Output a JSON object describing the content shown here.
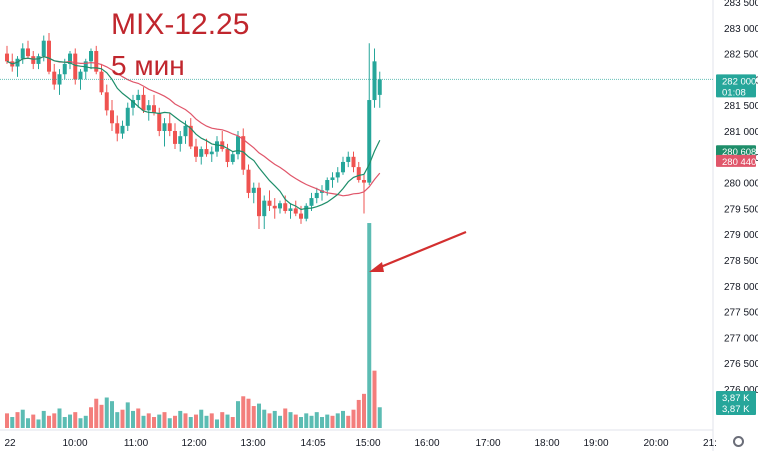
{
  "title": "MIX-12.25",
  "subtitle": "5 мин",
  "colors": {
    "up": "#26a69a",
    "down": "#ef5350",
    "ma_fast": "#1e8e6a",
    "ma_slow": "#e0566a",
    "annotation": "#d32f2f",
    "last_line": "#26a69a"
  },
  "icons": {
    "settings": "gear-icon",
    "annotation": "arrow-icon"
  },
  "chart_data": {
    "type": "candlestick",
    "price_axis": {
      "ticks": [
        "283 500",
        "283 000",
        "282 500",
        "282 000",
        "281 500",
        "281 000",
        "280 500",
        "280 000",
        "279 500",
        "279 000",
        "278 500",
        "278 000",
        "277 500",
        "277 000",
        "276 500",
        "276 000"
      ],
      "tick_values": [
        283500,
        283000,
        282500,
        282000,
        281500,
        281000,
        280500,
        280000,
        279500,
        279000,
        278500,
        278000,
        277500,
        277000,
        276500,
        276000
      ]
    },
    "time_axis": {
      "labels": [
        "22",
        "10:00",
        "11:00",
        "12:00",
        "13:00",
        "14:05",
        "15:00",
        "16:00",
        "17:00",
        "18:00",
        "19:00",
        "20:00",
        "21:"
      ]
    },
    "badges": {
      "last_price": "282 000",
      "countdown": "01:08",
      "ma_fast_value": "280 608",
      "ma_slow_value": "280 440",
      "volume_1": "3,87 K",
      "volume_2": "3,87 K"
    },
    "candles": [
      [
        282500,
        282650,
        282300,
        282350
      ],
      [
        282350,
        282500,
        282150,
        282250
      ],
      [
        282250,
        282450,
        282050,
        282400
      ],
      [
        282400,
        282700,
        282300,
        282600
      ],
      [
        282600,
        282750,
        282400,
        282450
      ],
      [
        282450,
        282550,
        282200,
        282300
      ],
      [
        282300,
        282500,
        282200,
        282450
      ],
      [
        282450,
        282850,
        282350,
        282750
      ],
      [
        282750,
        282900,
        282100,
        282150
      ],
      [
        282150,
        282300,
        281800,
        281900
      ],
      [
        281900,
        282200,
        281700,
        282100
      ],
      [
        282100,
        282400,
        282000,
        282300
      ],
      [
        282300,
        282550,
        282200,
        282500
      ],
      [
        282500,
        282600,
        281900,
        282000
      ],
      [
        282000,
        282200,
        281800,
        282150
      ],
      [
        282150,
        282400,
        282000,
        282350
      ],
      [
        282350,
        282600,
        282200,
        282550
      ],
      [
        282550,
        282650,
        282100,
        282150
      ],
      [
        282150,
        282300,
        281700,
        281750
      ],
      [
        281750,
        281900,
        281300,
        281400
      ],
      [
        281400,
        281600,
        281000,
        281150
      ],
      [
        281150,
        281300,
        280800,
        280950
      ],
      [
        280950,
        281200,
        280850,
        281100
      ],
      [
        281100,
        281550,
        281000,
        281450
      ],
      [
        281450,
        281700,
        281300,
        281600
      ],
      [
        281600,
        281800,
        281450,
        281700
      ],
      [
        281700,
        281850,
        281350,
        281400
      ],
      [
        281400,
        281600,
        281200,
        281500
      ],
      [
        281500,
        281700,
        281300,
        281350
      ],
      [
        281350,
        281450,
        280900,
        281000
      ],
      [
        281000,
        281250,
        280700,
        281150
      ],
      [
        281150,
        281350,
        280900,
        281000
      ],
      [
        281000,
        281150,
        280650,
        280750
      ],
      [
        280750,
        281000,
        280600,
        280900
      ],
      [
        280900,
        281200,
        280750,
        281100
      ],
      [
        281100,
        281250,
        280650,
        280700
      ],
      [
        280700,
        280850,
        280400,
        280500
      ],
      [
        280500,
        280700,
        280350,
        280650
      ],
      [
        280650,
        280850,
        280500,
        280550
      ],
      [
        280550,
        280700,
        280400,
        280600
      ],
      [
        280600,
        280900,
        280500,
        280800
      ],
      [
        280800,
        281000,
        280600,
        280650
      ],
      [
        280650,
        280750,
        280300,
        280400
      ],
      [
        280400,
        280600,
        280350,
        280550
      ],
      [
        280550,
        281000,
        280450,
        280900
      ],
      [
        280900,
        281050,
        280150,
        280250
      ],
      [
        280250,
        280350,
        279700,
        279800
      ],
      [
        279800,
        280000,
        279600,
        279900
      ],
      [
        279900,
        280000,
        279100,
        279350
      ],
      [
        279350,
        279750,
        279100,
        279650
      ],
      [
        279650,
        279850,
        279450,
        279550
      ],
      [
        279550,
        279700,
        279300,
        279500
      ],
      [
        279500,
        279650,
        279400,
        279600
      ],
      [
        279600,
        279750,
        279400,
        279450
      ],
      [
        279450,
        279600,
        279300,
        279500
      ],
      [
        279500,
        279650,
        279350,
        279400
      ],
      [
        279400,
        279550,
        279200,
        279300
      ],
      [
        279300,
        279600,
        279250,
        279550
      ],
      [
        279550,
        279800,
        279450,
        279700
      ],
      [
        279700,
        279900,
        279600,
        279800
      ],
      [
        279800,
        279950,
        279650,
        279850
      ],
      [
        279850,
        280100,
        279750,
        280050
      ],
      [
        280050,
        280200,
        279900,
        280100
      ],
      [
        280100,
        280300,
        280000,
        280200
      ],
      [
        280200,
        280500,
        280150,
        280400
      ],
      [
        280400,
        280600,
        280300,
        280500
      ],
      [
        280500,
        280600,
        280200,
        280300
      ],
      [
        280300,
        280400,
        280000,
        280050
      ],
      [
        280050,
        280150,
        279400,
        280000
      ],
      [
        280000,
        282700,
        279950,
        281600
      ],
      [
        281600,
        282600,
        281450,
        282350
      ],
      [
        281700,
        282150,
        281450,
        282000
      ]
    ],
    "volumes": [
      [
        1.2,
        0
      ],
      [
        0.9,
        1
      ],
      [
        1.3,
        0
      ],
      [
        1.5,
        1
      ],
      [
        0.8,
        1
      ],
      [
        1.1,
        0
      ],
      [
        0.7,
        1
      ],
      [
        1.4,
        1
      ],
      [
        1.0,
        0
      ],
      [
        1.2,
        0
      ],
      [
        1.6,
        1
      ],
      [
        0.9,
        1
      ],
      [
        1.1,
        1
      ],
      [
        1.3,
        0
      ],
      [
        0.8,
        1
      ],
      [
        1.0,
        1
      ],
      [
        1.7,
        0
      ],
      [
        2.4,
        0
      ],
      [
        1.9,
        0
      ],
      [
        2.5,
        1
      ],
      [
        2.2,
        1
      ],
      [
        1.3,
        1
      ],
      [
        1.5,
        0
      ],
      [
        2.1,
        1
      ],
      [
        1.4,
        1
      ],
      [
        1.6,
        0
      ],
      [
        1.0,
        1
      ],
      [
        1.2,
        0
      ],
      [
        0.9,
        0
      ],
      [
        1.1,
        1
      ],
      [
        1.3,
        0
      ],
      [
        0.8,
        1
      ],
      [
        1.0,
        0
      ],
      [
        1.4,
        1
      ],
      [
        1.2,
        0
      ],
      [
        0.9,
        1
      ],
      [
        1.1,
        0
      ],
      [
        1.5,
        1
      ],
      [
        1.0,
        1
      ],
      [
        1.2,
        0
      ],
      [
        0.7,
        1
      ],
      [
        1.3,
        0
      ],
      [
        1.1,
        1
      ],
      [
        0.9,
        0
      ],
      [
        2.2,
        1
      ],
      [
        2.6,
        0
      ],
      [
        2.4,
        0
      ],
      [
        1.8,
        0
      ],
      [
        2.0,
        1
      ],
      [
        1.5,
        1
      ],
      [
        1.2,
        0
      ],
      [
        1.4,
        1
      ],
      [
        1.0,
        1
      ],
      [
        1.6,
        0
      ],
      [
        1.3,
        1
      ],
      [
        1.1,
        0
      ],
      [
        0.9,
        1
      ],
      [
        1.2,
        1
      ],
      [
        1.0,
        1
      ],
      [
        1.3,
        1
      ],
      [
        0.9,
        1
      ],
      [
        1.1,
        1
      ],
      [
        1.0,
        0
      ],
      [
        1.2,
        1
      ],
      [
        1.4,
        1
      ],
      [
        1.0,
        0
      ],
      [
        1.5,
        0
      ],
      [
        2.3,
        0
      ],
      [
        2.8,
        0
      ],
      [
        16.8,
        1
      ],
      [
        4.7,
        0
      ],
      [
        1.7,
        1
      ]
    ]
  }
}
